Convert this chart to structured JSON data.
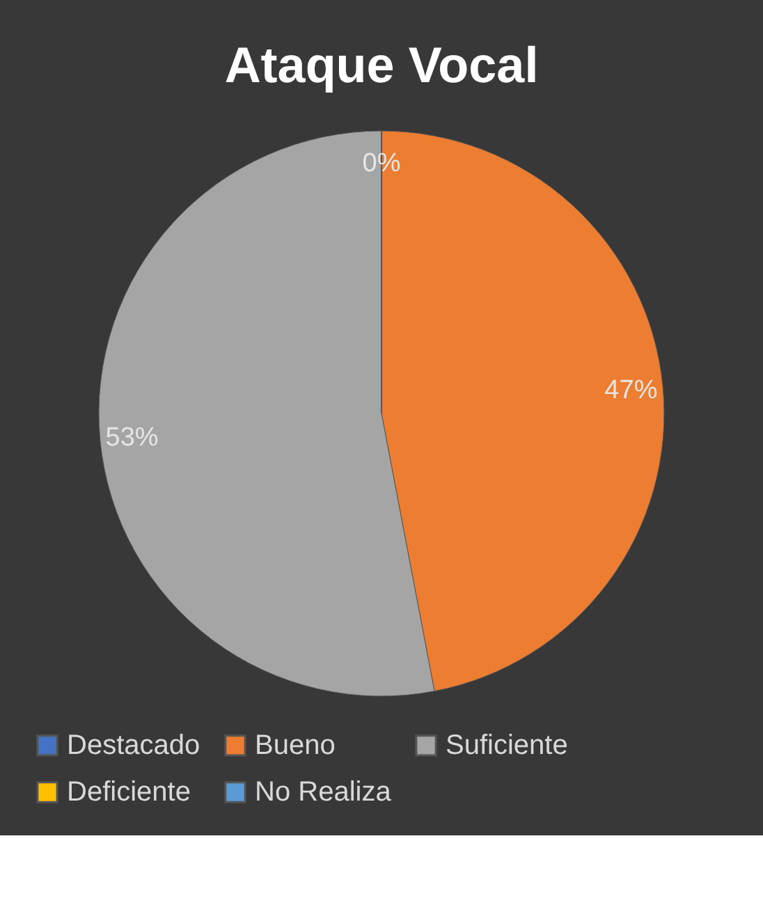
{
  "chart_data": {
    "type": "pie",
    "title": "Ataque  Vocal",
    "categories": [
      "Destacado",
      "Bueno",
      "Suficiente",
      "Deficiente",
      "No Realiza"
    ],
    "values": [
      0,
      47,
      53,
      0,
      0
    ],
    "colors": [
      "#4472c4",
      "#ed7d31",
      "#a5a5a5",
      "#ffc000",
      "#5b9bd5"
    ],
    "value_labels": [
      "0%",
      "47%",
      "53%",
      null,
      null
    ],
    "legend": "bottom"
  }
}
